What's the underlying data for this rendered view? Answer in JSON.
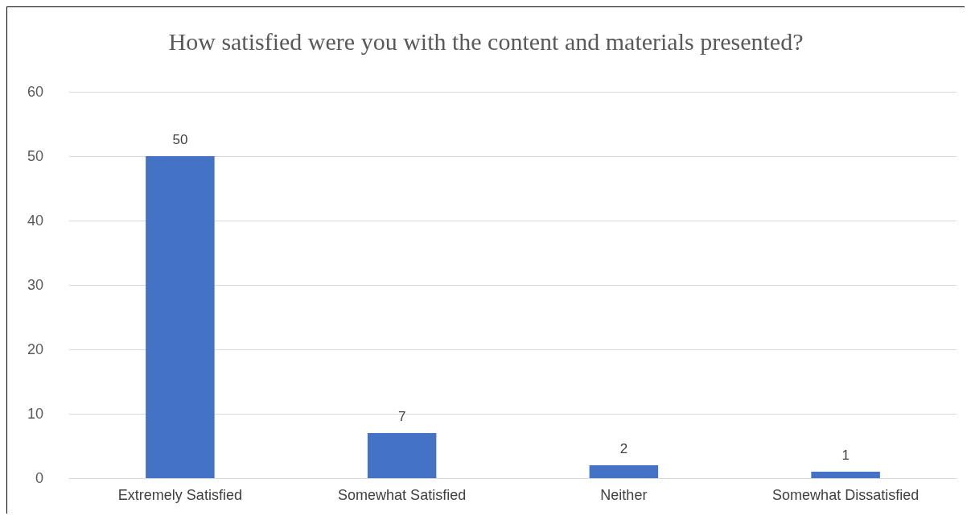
{
  "chart_data": {
    "type": "bar",
    "title": "How satisfied were you with the content and materials presented?",
    "categories": [
      "Extremely Satisfied",
      "Somewhat Satisfied",
      "Neither",
      "Somewhat Dissatisfied"
    ],
    "values": [
      50,
      7,
      2,
      1
    ],
    "color": "#4472c4",
    "ylim": [
      0,
      60
    ],
    "yticks": [
      0,
      10,
      20,
      30,
      40,
      50,
      60
    ],
    "grid": "y",
    "data_labels": true
  }
}
